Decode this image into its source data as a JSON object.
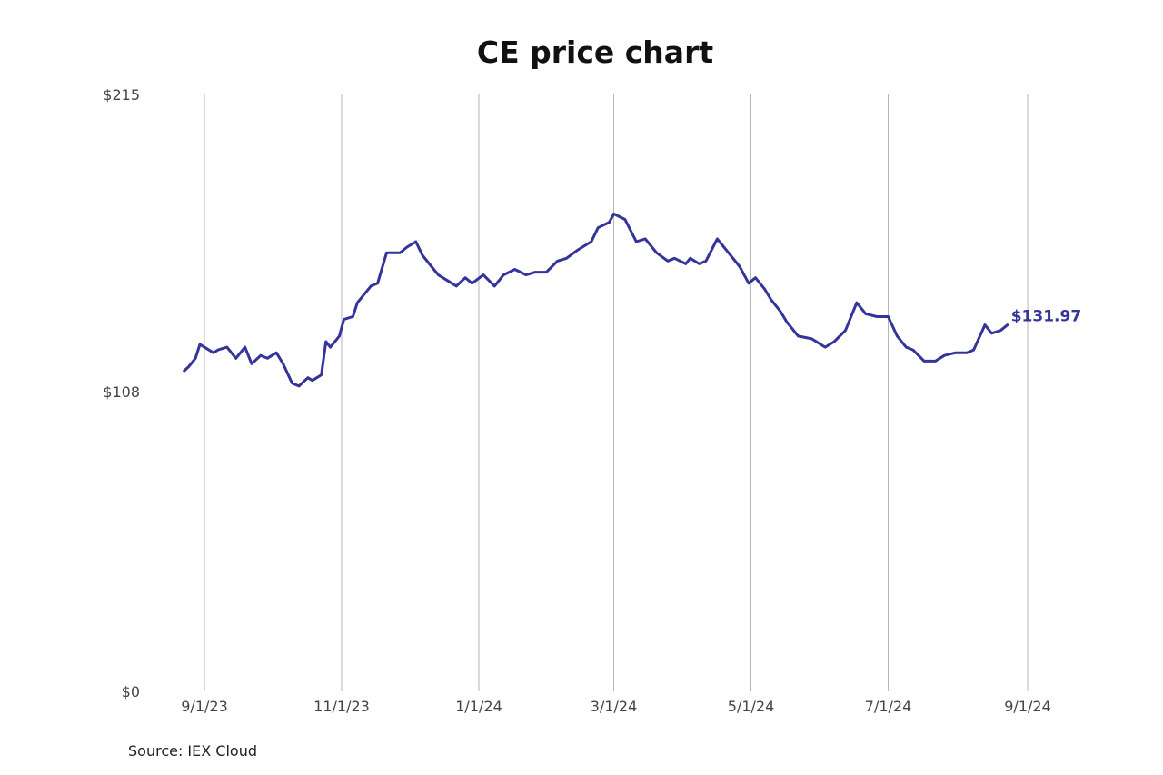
{
  "chart_data": {
    "type": "line",
    "title": "CE price chart",
    "xlabel": "",
    "ylabel": "",
    "ylim": [
      0,
      215
    ],
    "y_ticks": [
      {
        "value": 0,
        "label": "$0"
      },
      {
        "value": 108,
        "label": "$108"
      },
      {
        "value": 215,
        "label": "$215"
      }
    ],
    "x_ticks": [
      {
        "date": "2023-09-01",
        "label": "9/1/23"
      },
      {
        "date": "2023-11-01",
        "label": "11/1/23"
      },
      {
        "date": "2024-01-01",
        "label": "1/1/24"
      },
      {
        "date": "2024-03-01",
        "label": "3/1/24"
      },
      {
        "date": "2024-05-01",
        "label": "5/1/24"
      },
      {
        "date": "2024-07-01",
        "label": "7/1/24"
      },
      {
        "date": "2024-09-01",
        "label": "9/1/24"
      }
    ],
    "grid": "vertical",
    "legend": "none",
    "line_color": "#35349a",
    "last_value_label": "$131.97",
    "series": [
      {
        "x": [
          "2023-08-23",
          "2023-08-25",
          "2023-08-28",
          "2023-08-30",
          "2023-09-01",
          "2023-09-05",
          "2023-09-07",
          "2023-09-11",
          "2023-09-13",
          "2023-09-15",
          "2023-09-19",
          "2023-09-22",
          "2023-09-26",
          "2023-09-29",
          "2023-10-03",
          "2023-10-06",
          "2023-10-10",
          "2023-10-13",
          "2023-10-17",
          "2023-10-19",
          "2023-10-23",
          "2023-10-25",
          "2023-10-27",
          "2023-10-31",
          "2023-11-02",
          "2023-11-06",
          "2023-11-08",
          "2023-11-10",
          "2023-11-14",
          "2023-11-17",
          "2023-11-21",
          "2023-11-27",
          "2023-11-30",
          "2023-12-04",
          "2023-12-07",
          "2023-12-11",
          "2023-12-14",
          "2023-12-18",
          "2023-12-22",
          "2023-12-26",
          "2023-12-29",
          "2024-01-03",
          "2024-01-08",
          "2024-01-12",
          "2024-01-17",
          "2024-01-22",
          "2024-01-26",
          "2024-01-31",
          "2024-02-05",
          "2024-02-09",
          "2024-02-14",
          "2024-02-20",
          "2024-02-23",
          "2024-02-28",
          "2024-03-01",
          "2024-03-06",
          "2024-03-11",
          "2024-03-15",
          "2024-03-20",
          "2024-03-25",
          "2024-03-28",
          "2024-04-02",
          "2024-04-04",
          "2024-04-08",
          "2024-04-11",
          "2024-04-16",
          "2024-04-22",
          "2024-04-26",
          "2024-04-30",
          "2024-05-03",
          "2024-05-07",
          "2024-05-10",
          "2024-05-14",
          "2024-05-17",
          "2024-05-22",
          "2024-05-28",
          "2024-06-03",
          "2024-06-07",
          "2024-06-12",
          "2024-06-17",
          "2024-06-21",
          "2024-06-26",
          "2024-07-01",
          "2024-07-05",
          "2024-07-09",
          "2024-07-12",
          "2024-07-17",
          "2024-07-22",
          "2024-07-26",
          "2024-07-31",
          "2024-08-05",
          "2024-08-08",
          "2024-08-13",
          "2024-08-16",
          "2024-08-20",
          "2024-08-23"
        ],
        "y": [
          115.5,
          117,
          120,
          125,
          124,
          122,
          123,
          124,
          122,
          120,
          124,
          118,
          121,
          120,
          122,
          118,
          111,
          110,
          113,
          112,
          114,
          126,
          124,
          128,
          134,
          135,
          140,
          142,
          146,
          147,
          158,
          158,
          160,
          162,
          157,
          153,
          150,
          148,
          146,
          149,
          147,
          150,
          146,
          150,
          152,
          150,
          151,
          151,
          155,
          156,
          159,
          162,
          167,
          169,
          172,
          170,
          162,
          163,
          158,
          155,
          156,
          154,
          156,
          154,
          155,
          163,
          157,
          153,
          147,
          149,
          145,
          141,
          137,
          133,
          128,
          127,
          124,
          126,
          130,
          140,
          136,
          135,
          135,
          128,
          124,
          123,
          119,
          119,
          121,
          122,
          122,
          123,
          132,
          129,
          130,
          131.97
        ]
      }
    ]
  },
  "source_note": "Source: IEX Cloud"
}
